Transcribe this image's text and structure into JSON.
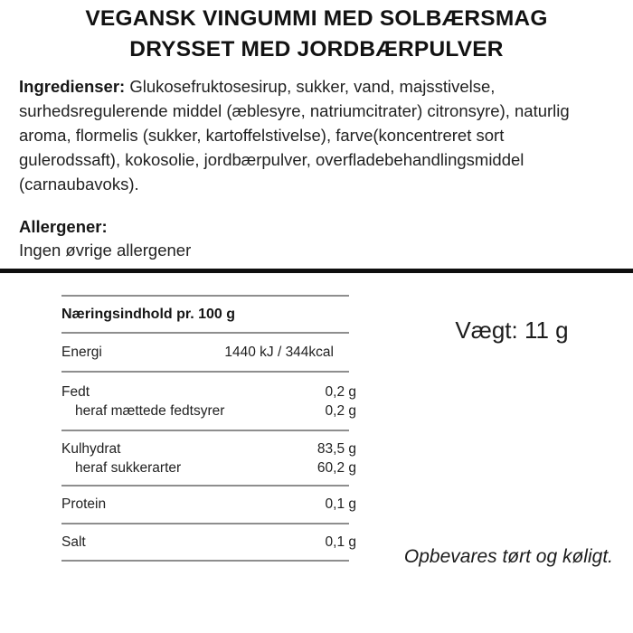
{
  "title": {
    "line1": "VEGANSK VINGUMMI MED SOLBÆRSMAG",
    "line2": "DRYSSET MED JORDBÆRPULVER"
  },
  "ingredients": {
    "label": "Ingredienser:",
    "lines": [
      "Glukosefruktosesirup, sukker, vand, majsstivelse,",
      "surhedsregulerende middel (æblesyre, natriumcitrater) citronsyre), naturlig",
      "aroma, flormelis (sukker, kartoffelstivelse), farve(koncentreret sort",
      "gulerodssaft), kokosolie, jordbærpulver, overfladebehandlingsmiddel",
      "(carnaubavoks)."
    ]
  },
  "allergens": {
    "label": "Allergener:",
    "text": "Ingen øvrige allergener"
  },
  "nutrition": {
    "header": "Næringsindhold pr. 100 g",
    "rows": [
      {
        "label": "Energi",
        "value": "1440 kJ / 344kcal"
      },
      {
        "label": "Fedt",
        "value": "0,2 g"
      },
      {
        "label": "heraf mættede fedtsyrer",
        "value": "0,2 g"
      },
      {
        "label": "Kulhydrat",
        "value": "83,5 g"
      },
      {
        "label": "heraf sukkerarter",
        "value": "60,2 g"
      },
      {
        "label": "Protein",
        "value": "0,1 g"
      },
      {
        "label": "Salt",
        "value": "0,1 g"
      }
    ]
  },
  "weight": {
    "text": "Vægt: 11 g"
  },
  "storage": {
    "text": "Opbevares tørt og køligt."
  },
  "colors": {
    "text": "#1f1f1f",
    "table_line": "#8e8e8e",
    "divider": "#0f0f0f",
    "background": "#ffffff"
  }
}
